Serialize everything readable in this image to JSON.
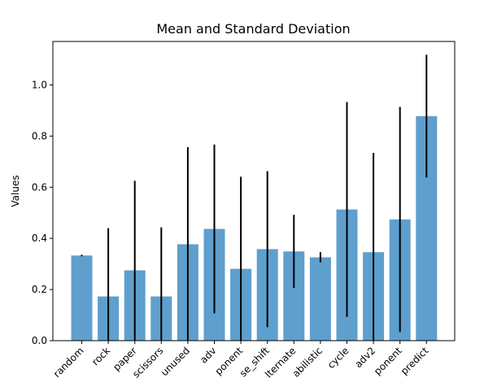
{
  "chart_data": {
    "type": "bar",
    "title": "Mean and Standard Deviation",
    "xlabel": "",
    "ylabel": "Values",
    "ylim": [
      0,
      1.17
    ],
    "yticks": [
      0.0,
      0.2,
      0.4,
      0.6,
      0.8,
      1.0
    ],
    "ytick_labels": [
      "0.0",
      "0.2",
      "0.4",
      "0.6",
      "0.8",
      "1.0"
    ],
    "grid": false,
    "bar_color": "#5f9fcd",
    "error_color": "#000000",
    "categories": [
      "random",
      "rock",
      "paper",
      "scissors",
      "unused",
      "adv",
      "ponent",
      "se_shift",
      "lternate",
      "abilistic",
      "cycle",
      "adv2",
      "ponent",
      "predict"
    ],
    "values": [
      0.333,
      0.173,
      0.275,
      0.173,
      0.377,
      0.437,
      0.281,
      0.358,
      0.349,
      0.326,
      0.513,
      0.346,
      0.474,
      0.878
    ],
    "errors": [
      0.003,
      0.267,
      0.35,
      0.27,
      0.38,
      0.33,
      0.36,
      0.305,
      0.143,
      0.02,
      0.42,
      0.388,
      0.44,
      0.24
    ]
  }
}
